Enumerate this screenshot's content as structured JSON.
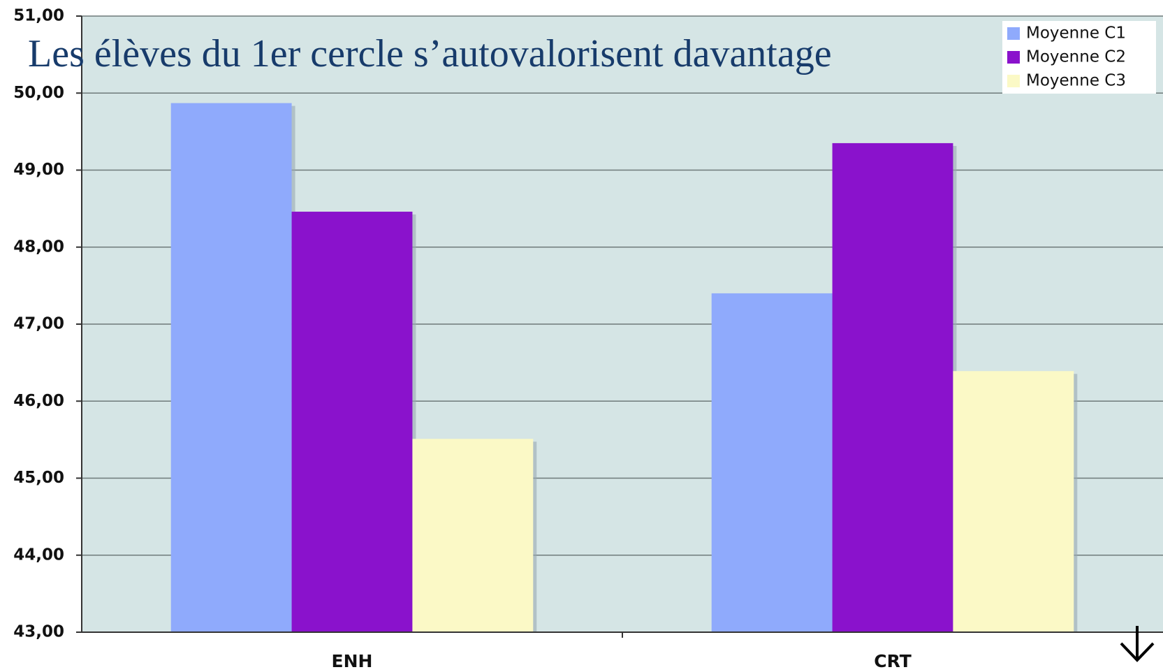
{
  "chart_data": {
    "type": "bar",
    "title": "Les élèves du 1er cercle s’autovalorisent davantage",
    "categories": [
      "ENH",
      "CRT"
    ],
    "series": [
      {
        "name": "Moyenne C1",
        "color": "#8faafc",
        "values": [
          49.87,
          47.4
        ]
      },
      {
        "name": "Moyenne C2",
        "color": "#8a12cc",
        "values": [
          48.46,
          49.35
        ]
      },
      {
        "name": "Moyenne C3",
        "color": "#fbf9c6",
        "values": [
          45.51,
          46.39
        ]
      }
    ],
    "ylim": [
      43,
      51
    ],
    "yticks": [
      {
        "value": 43,
        "label": "43,00"
      },
      {
        "value": 44,
        "label": "44,00"
      },
      {
        "value": 45,
        "label": "45,00"
      },
      {
        "value": 46,
        "label": "46,00"
      },
      {
        "value": 47,
        "label": "47,00"
      },
      {
        "value": 48,
        "label": "48,00"
      },
      {
        "value": 49,
        "label": "49,00"
      },
      {
        "value": 50,
        "label": "50,00"
      },
      {
        "value": 51,
        "label": "51,00"
      }
    ],
    "grid": true
  }
}
